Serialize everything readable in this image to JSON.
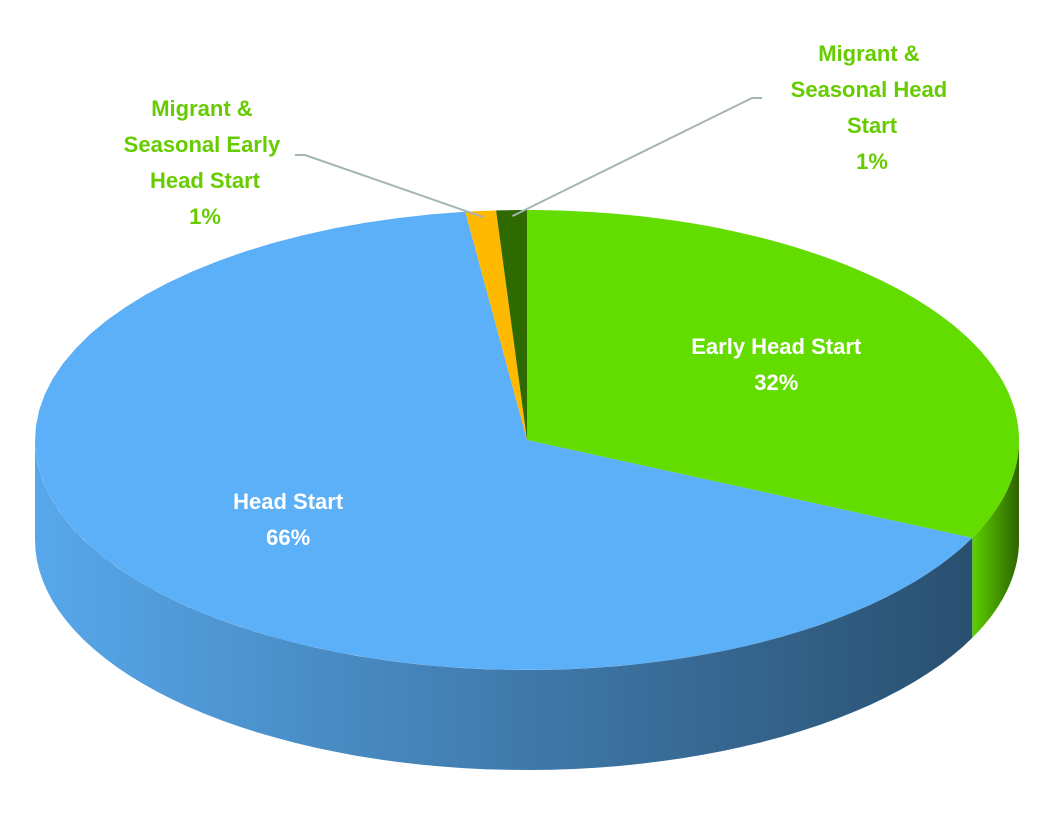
{
  "chart_data": {
    "type": "pie",
    "categories": [
      "Early Head Start",
      "Head Start",
      "Migrant & Seasonal Early Head Start",
      "Migrant & Seasonal Head Start"
    ],
    "values": [
      32,
      66,
      1,
      1
    ],
    "value_labels": [
      "32%",
      "66%",
      "1%",
      "1%"
    ],
    "colors": [
      "#63dc00",
      "#5cb0f7",
      "#ffb900",
      "#2f6a00"
    ]
  }
}
